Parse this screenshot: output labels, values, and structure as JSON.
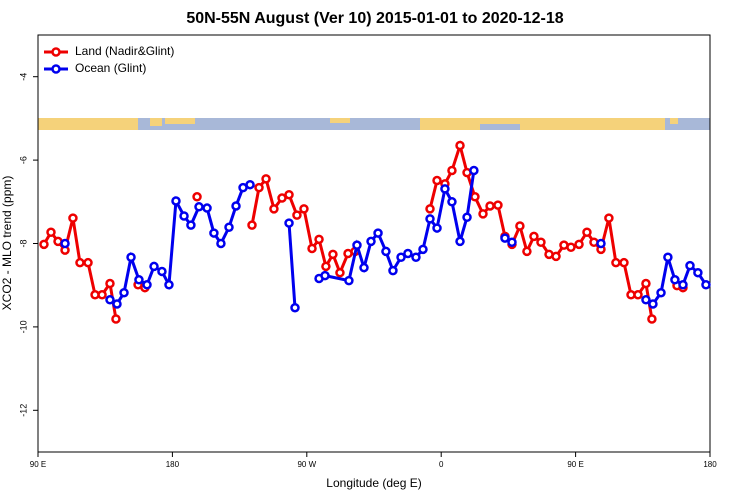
{
  "chart_data": {
    "type": "line",
    "title": "50N-55N August (Ver 10)   2015-01-01 to 2020-12-18",
    "xlabel": "Longitude (deg E)",
    "ylabel": "XCO2 - MLO trend (ppm)",
    "xlim": [
      90,
      540
    ],
    "xticks": [
      {
        "value": 90,
        "label": "90 E"
      },
      {
        "value": 180,
        "label": "180"
      },
      {
        "value": 270,
        "label": "90 W"
      },
      {
        "value": 360,
        "label": "0"
      },
      {
        "value": 450,
        "label": "90 E"
      },
      {
        "value": 540,
        "label": "180"
      }
    ],
    "ylim": [
      -13,
      -3
    ],
    "yticks": [
      -12,
      -10,
      -8,
      -6,
      -4
    ],
    "legend": "top-left",
    "series": [
      {
        "name": "Land (Nadir&Glint)",
        "color": "#ee0000",
        "x": [
          94.0,
          98.7,
          103.4,
          108.1,
          113.4,
          118.1,
          123.5,
          128.2,
          132.9,
          138.2,
          142.2,
          null,
          157.0,
          161.6,
          null,
          196.5,
          null,
          233.3,
          238.0,
          242.7,
          248.0,
          253.4,
          258.1,
          263.4,
          268.1,
          273.5,
          278.2,
          282.8,
          287.5,
          292.2,
          297.6,
          302.3,
          null,
          352.5,
          357.2,
          362.5,
          367.2,
          372.6,
          377.3,
          382.6,
          388.0,
          392.7,
          398.0,
          402.7,
          407.4,
          412.7,
          417.4,
          422.1,
          426.8,
          432.2,
          436.9,
          442.2,
          446.9,
          452.3,
          457.6,
          462.3,
          467.0,
          472.3,
          477.0,
          482.4,
          487.1,
          491.8,
          497.1,
          501.1,
          null,
          517.9,
          521.9
        ],
        "values": [
          -8.02,
          -7.73,
          -7.95,
          -8.16,
          -7.39,
          -8.46,
          -8.46,
          -9.23,
          -9.23,
          -8.96,
          -9.81,
          null,
          -8.99,
          -9.06,
          null,
          -6.88,
          null,
          -7.56,
          -6.66,
          -6.45,
          -7.17,
          -6.91,
          -6.83,
          -7.32,
          -7.17,
          -8.12,
          -7.9,
          -8.55,
          -8.26,
          -8.7,
          -8.24,
          -8.19,
          null,
          -7.17,
          -6.49,
          -6.57,
          -6.25,
          -5.65,
          -6.3,
          -6.88,
          -7.29,
          -7.1,
          -7.08,
          -7.83,
          -8.02,
          -7.58,
          -8.19,
          -7.83,
          -7.97,
          -8.26,
          -8.31,
          -8.04,
          -8.09,
          -8.02,
          -7.73,
          -7.97,
          -8.14,
          -7.39,
          -8.46,
          -8.46,
          -9.23,
          -9.23,
          -8.96,
          -9.81,
          null,
          -9.01,
          -9.06
        ]
      },
      {
        "name": "Ocean (Glint)",
        "color": "#0000ee",
        "x": [
          108.1,
          null,
          138.2,
          142.9,
          147.6,
          152.3,
          157.6,
          163.0,
          167.7,
          173.0,
          177.7,
          182.4,
          187.8,
          192.4,
          197.8,
          203.2,
          207.8,
          212.5,
          217.9,
          222.6,
          227.3,
          232.0,
          null,
          258.1,
          262.1,
          null,
          278.2,
          282.2,
          298.2,
          303.6,
          308.3,
          313.0,
          317.7,
          323.0,
          327.7,
          333.1,
          337.7,
          343.1,
          347.8,
          352.5,
          357.2,
          362.5,
          367.2,
          372.6,
          377.3,
          381.9,
          null,
          402.7,
          407.4,
          null,
          467.0,
          null,
          497.1,
          501.8,
          507.2,
          511.8,
          516.5,
          521.9,
          526.6,
          531.9,
          537.3
        ],
        "values": [
          -8.0,
          null,
          -9.35,
          -9.45,
          -9.18,
          -8.33,
          -8.87,
          -8.99,
          -8.55,
          -8.67,
          -8.99,
          -6.98,
          -7.34,
          -7.56,
          -7.12,
          -7.15,
          -7.75,
          -8.0,
          -7.61,
          -7.1,
          -6.66,
          -6.59,
          null,
          -7.51,
          -9.54,
          null,
          -8.84,
          -8.77,
          -8.89,
          -8.04,
          -8.58,
          -7.95,
          -7.75,
          -8.19,
          -8.65,
          -8.33,
          -8.24,
          -8.33,
          -8.14,
          -7.41,
          -7.63,
          -6.69,
          -7.0,
          -7.95,
          -7.37,
          -6.25,
          null,
          -7.87,
          -7.97,
          null,
          -8.0,
          null,
          -9.35,
          -9.45,
          -9.18,
          -8.33,
          -8.87,
          -8.99,
          -8.53,
          -8.7,
          -8.99
        ]
      }
    ]
  }
}
